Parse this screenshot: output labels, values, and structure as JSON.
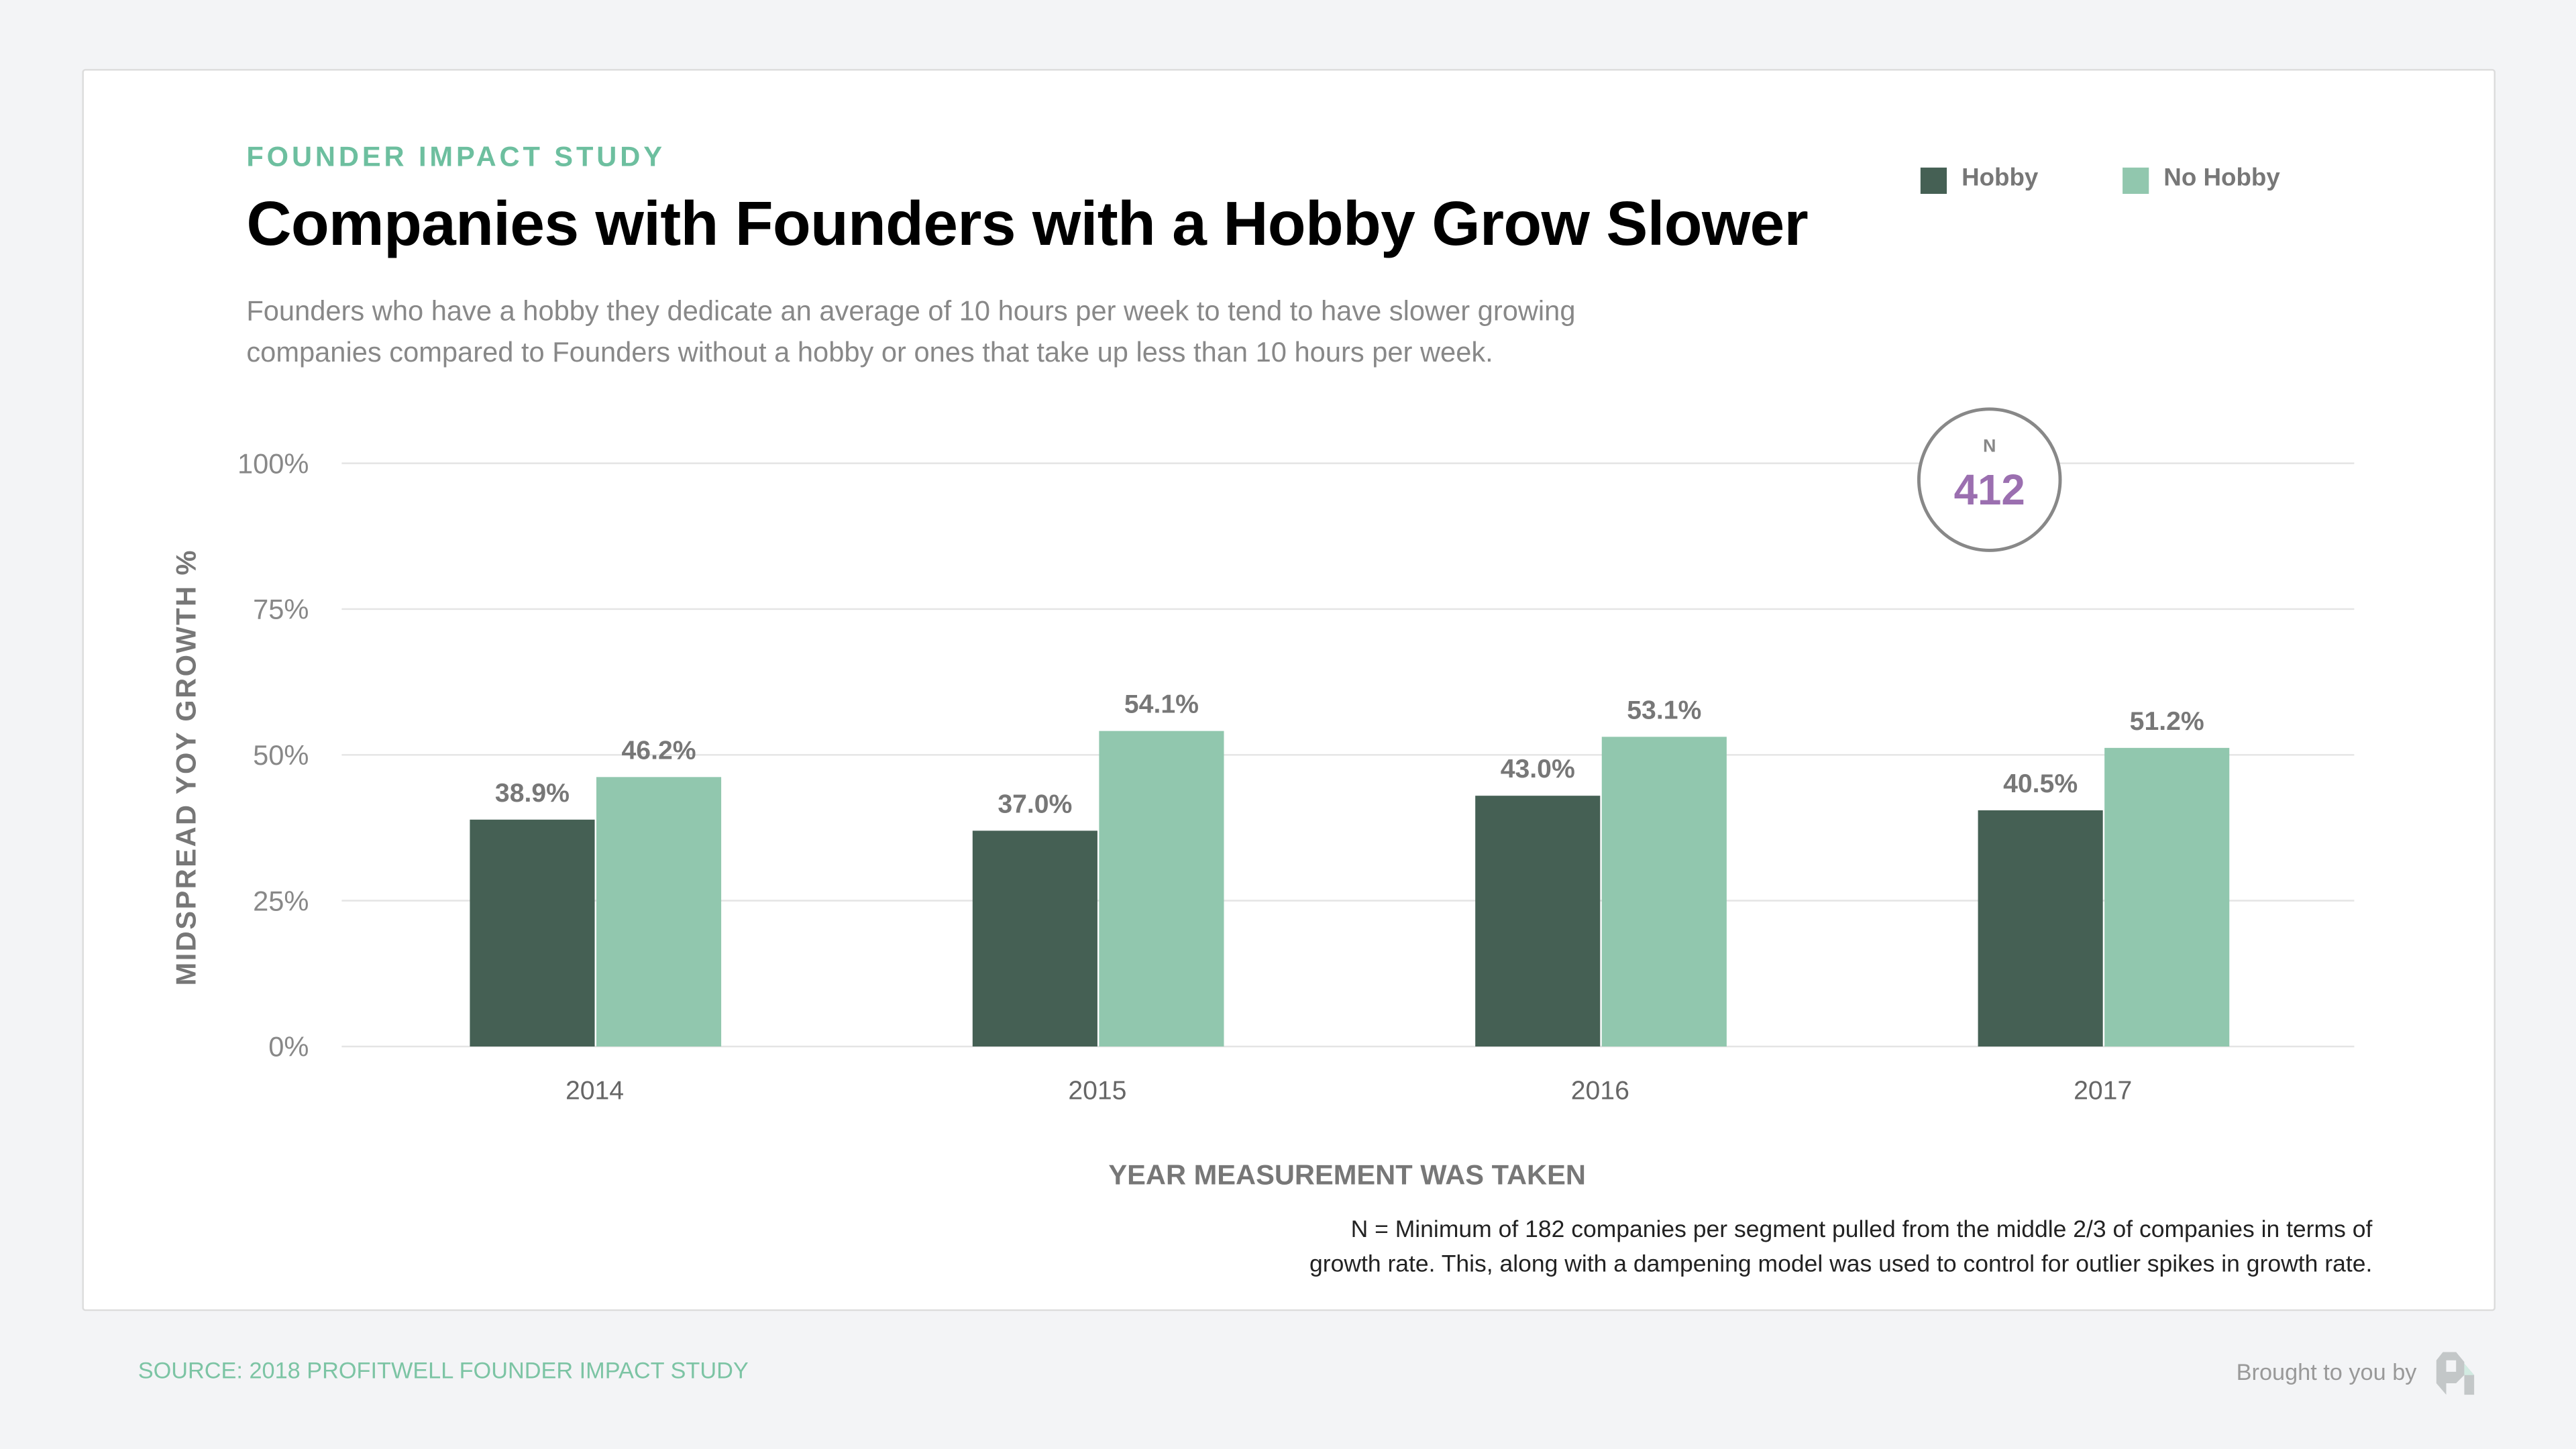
{
  "header": {
    "eyebrow": "FOUNDER IMPACT STUDY",
    "title": "Companies with Founders with a Hobby Grow Slower",
    "subtitle_lines": [
      "Founders who have a hobby they dedicate an average of 10 hours per week to tend to have slower growing",
      "companies compared to Founders without a hobby or ones that take up less than 10 hours per week."
    ]
  },
  "sample": {
    "label": "N",
    "value": "412",
    "color": "#9b6fb0"
  },
  "footnote_lines": [
    "N = Minimum of 182 companies per segment pulled from the middle 2/3 of companies in terms of",
    "growth rate. This, along with a dampening model was used to control for outlier spikes in growth rate."
  ],
  "footer": {
    "source": "SOURCE: 2018 PROFITWELL FOUNDER IMPACT STUDY",
    "brought_by": "Brought to you by",
    "logo_text": "ProfitWell"
  },
  "chart_data": {
    "type": "bar",
    "categories": [
      "2014",
      "2015",
      "2016",
      "2017"
    ],
    "series": [
      {
        "name": "Hobby",
        "values": [
          38.9,
          37.0,
          43.0,
          40.5
        ],
        "labels": [
          "38.9%",
          "37.0%",
          "43.0%",
          "40.5%"
        ],
        "color": "#456054"
      },
      {
        "name": "No Hobby",
        "values": [
          46.2,
          54.1,
          53.1,
          51.2
        ],
        "labels": [
          "46.2%",
          "54.1%",
          "53.1%",
          "51.2%"
        ],
        "color": "#91c7ae"
      }
    ],
    "xlabel": "YEAR MEASUREMENT WAS TAKEN",
    "ylabel": "MIDSPREAD YOY GROWTH %",
    "ylim": [
      0,
      100
    ],
    "yticks": [
      0,
      25,
      50,
      75,
      100
    ],
    "ytick_labels": [
      "0%",
      "25%",
      "50%",
      "75%",
      "100%"
    ],
    "grid": true,
    "legend_position": "top-right"
  }
}
